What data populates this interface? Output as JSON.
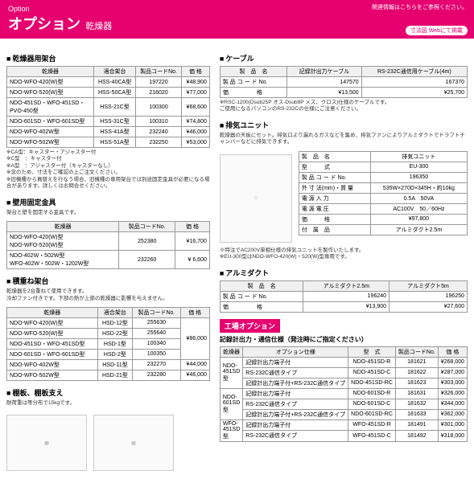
{
  "header": {
    "option_en": "Option",
    "option_jp": "オプション",
    "sub": "乾燥器",
    "note": "関連情報はこちらをご参照ください。",
    "badge": "Webにて掲載",
    "badge_pre": "寸法図"
  },
  "stand": {
    "title": "乾燥器用架台",
    "cols": [
      "乾燥器",
      "適合架台",
      "製品コードNo.",
      "価 格"
    ],
    "rows": [
      [
        "NDO-WFO-420(W)型",
        "HSS-40CA型",
        "197220",
        "¥48,900"
      ],
      [
        "NDO-WFO-520(W)型",
        "HSS-50CA型",
        "216020",
        "¥77,000"
      ],
      [
        "NDO-451SD・WFO-451SD・\nPVO-450型",
        "HSS-21C型",
        "100300",
        "¥68,600"
      ],
      [
        "NDO-601SD・WFO-601SD型",
        "HSS-31C型",
        "100310",
        "¥74,800"
      ],
      [
        "NDO-WFO-402W型",
        "HSS-41A型",
        "232240",
        "¥46,000"
      ],
      [
        "NDO-WFO-502W型",
        "HSS-51A型",
        "232250",
        "¥53,000"
      ]
    ],
    "notes": "※CA型：キャスター・アジャスター付\n※C型　：キャスター付\n※A型　：アジャスター付（キャスターなし）\n※念のため、寸法をご確認の上ご注文ください。\n※旧機種から買替えを行なう場合、旧機種の専用架台では別途固定金具が必要になる場合があります。詳しくはお問合せください。"
  },
  "wallfix": {
    "title": "壁用固定金具",
    "desc": "架台と壁を固定する金具です。",
    "cols": [
      "乾燥器",
      "製品コードNo.",
      "価 格"
    ],
    "rows": [
      [
        "NDO-WFO-420(W)型\nNDO-WFO-520(W)型",
        "252380",
        "¥16,700"
      ],
      [
        "NDO-402W・502W型\nWFO-402W・502W・1202W型",
        "232260",
        "¥ 6,600"
      ]
    ]
  },
  "stack": {
    "title": "積重ね架台",
    "desc": "乾燥器を2台重ねて使用できます。\n冷却ファン付きです。下部の熱が上部の乾燥器に影響を与えません。",
    "cols": [
      "乾燥器",
      "適合架台",
      "製品コードNo.",
      "価 格"
    ],
    "rows": [
      [
        "NDO-WFO-420(W)型",
        "HSD-12型",
        "255630",
        "¥86,000"
      ],
      [
        "NDO-WFO-520(W)型",
        "HSD-22型",
        "255640",
        ""
      ],
      [
        "NDO-451SD・WFO-451SD型",
        "HSD-1型",
        "100340",
        ""
      ],
      [
        "NDO-601SD・WFO-601SD型",
        "HSD-2型",
        "100350",
        ""
      ],
      [
        "NDO-WFO-402W型",
        "HSD-11型",
        "232270",
        "¥44,000"
      ],
      [
        "NDO-WFO-502W型",
        "HSD-21型",
        "232280",
        "¥46,000"
      ]
    ]
  },
  "shelf": {
    "title": "棚板、棚板支え",
    "desc": "耐荷重は等分布で15kgです。"
  },
  "cable": {
    "title": "ケーブル",
    "cols": [
      "製　品　名",
      "記録計出力ケーブル",
      "RS-232C通信用ケーブル(4m)"
    ],
    "rows": [
      [
        "製 品 コ ー ド No.",
        "147570",
        "167370"
      ],
      [
        "価　　　　　格",
        "¥13,500",
        "¥25,700"
      ]
    ],
    "notes": "※RSC-1200(Dsub25P オス-Dsub9P メス、クロス)仕様のケーブルです。\nご使用になるパソコンのRS-232Cの仕様にご注意ください。"
  },
  "exhaust": {
    "title": "排気ユニット",
    "desc": "乾燥器の天板にセット。排気口より漏れるガスなどを集め、排気ファンによりアルミダクトでドラフトチャンバーなどに排気できます。",
    "rows": [
      [
        "製　品　名",
        "排気ユニット"
      ],
      [
        "型　　　式",
        "EU-300"
      ],
      [
        "製 品 コ ー ド No.",
        "196350"
      ],
      [
        "外 寸 法(mm)・質 量",
        "535W×270D×345H・約10kg"
      ],
      [
        "電  源  入  力",
        "0.5A　50VA"
      ],
      [
        "電  源  電  圧",
        "AC100V　50／60Hz"
      ],
      [
        "価　　　格",
        "¥97,800"
      ],
      [
        "付　属　品",
        "アルミダクト2.5m"
      ]
    ],
    "notes": "※特注でAC200V単相仕様の排気ユニットを製作いたします。\n※EU-300型はNDO-WFO-420(W)・520(W)型専用です。"
  },
  "duct": {
    "title": "アルミダクト",
    "cols": [
      "製　品　名",
      "アルミダクト2.5m",
      "アルミダクト5m"
    ],
    "rows": [
      [
        "製 品 コ ー ド No.",
        "196240",
        "196250"
      ],
      [
        "価　　　　　格",
        "¥13,900",
        "¥27,600"
      ]
    ]
  },
  "factory": {
    "badge": "工場オプション",
    "sub": "記録計出力・通信仕様（発注時にご指定ください）",
    "cols": [
      "乾燥器",
      "オプション仕様",
      "型　式",
      "製品コードNo.",
      "価 格"
    ],
    "groups": [
      {
        "model": "NDO-\n451SD型",
        "rows": [
          [
            "記録計出力端子付",
            "NDO-451SD-R",
            "181621",
            "¥268,000"
          ],
          [
            "RS-232C通信タイプ",
            "NDO-451SD-C",
            "181622",
            "¥287,000"
          ],
          [
            "記録計出力端子付+RS-232C通信タイプ",
            "NDO-451SD-RC",
            "181623",
            "¥303,000"
          ]
        ]
      },
      {
        "model": "NDO-\n601SD型",
        "rows": [
          [
            "記録計出力端子付",
            "NDO-601SD-R",
            "181631",
            "¥326,000"
          ],
          [
            "RS-232C通信タイプ",
            "NDO-601SD-C",
            "181632",
            "¥344,000"
          ],
          [
            "記録計出力端子付+RS-232C通信タイプ",
            "NDO-601SD-RC",
            "181633",
            "¥362,000"
          ]
        ]
      },
      {
        "model": "WFO-\n451SD型",
        "rows": [
          [
            "記録計出力端子付",
            "WFO-451SD-R",
            "181491",
            "¥301,000"
          ],
          [
            "RS-232C通信タイプ",
            "WFO-451SD-C",
            "181492",
            "¥318,000"
          ]
        ]
      }
    ]
  }
}
